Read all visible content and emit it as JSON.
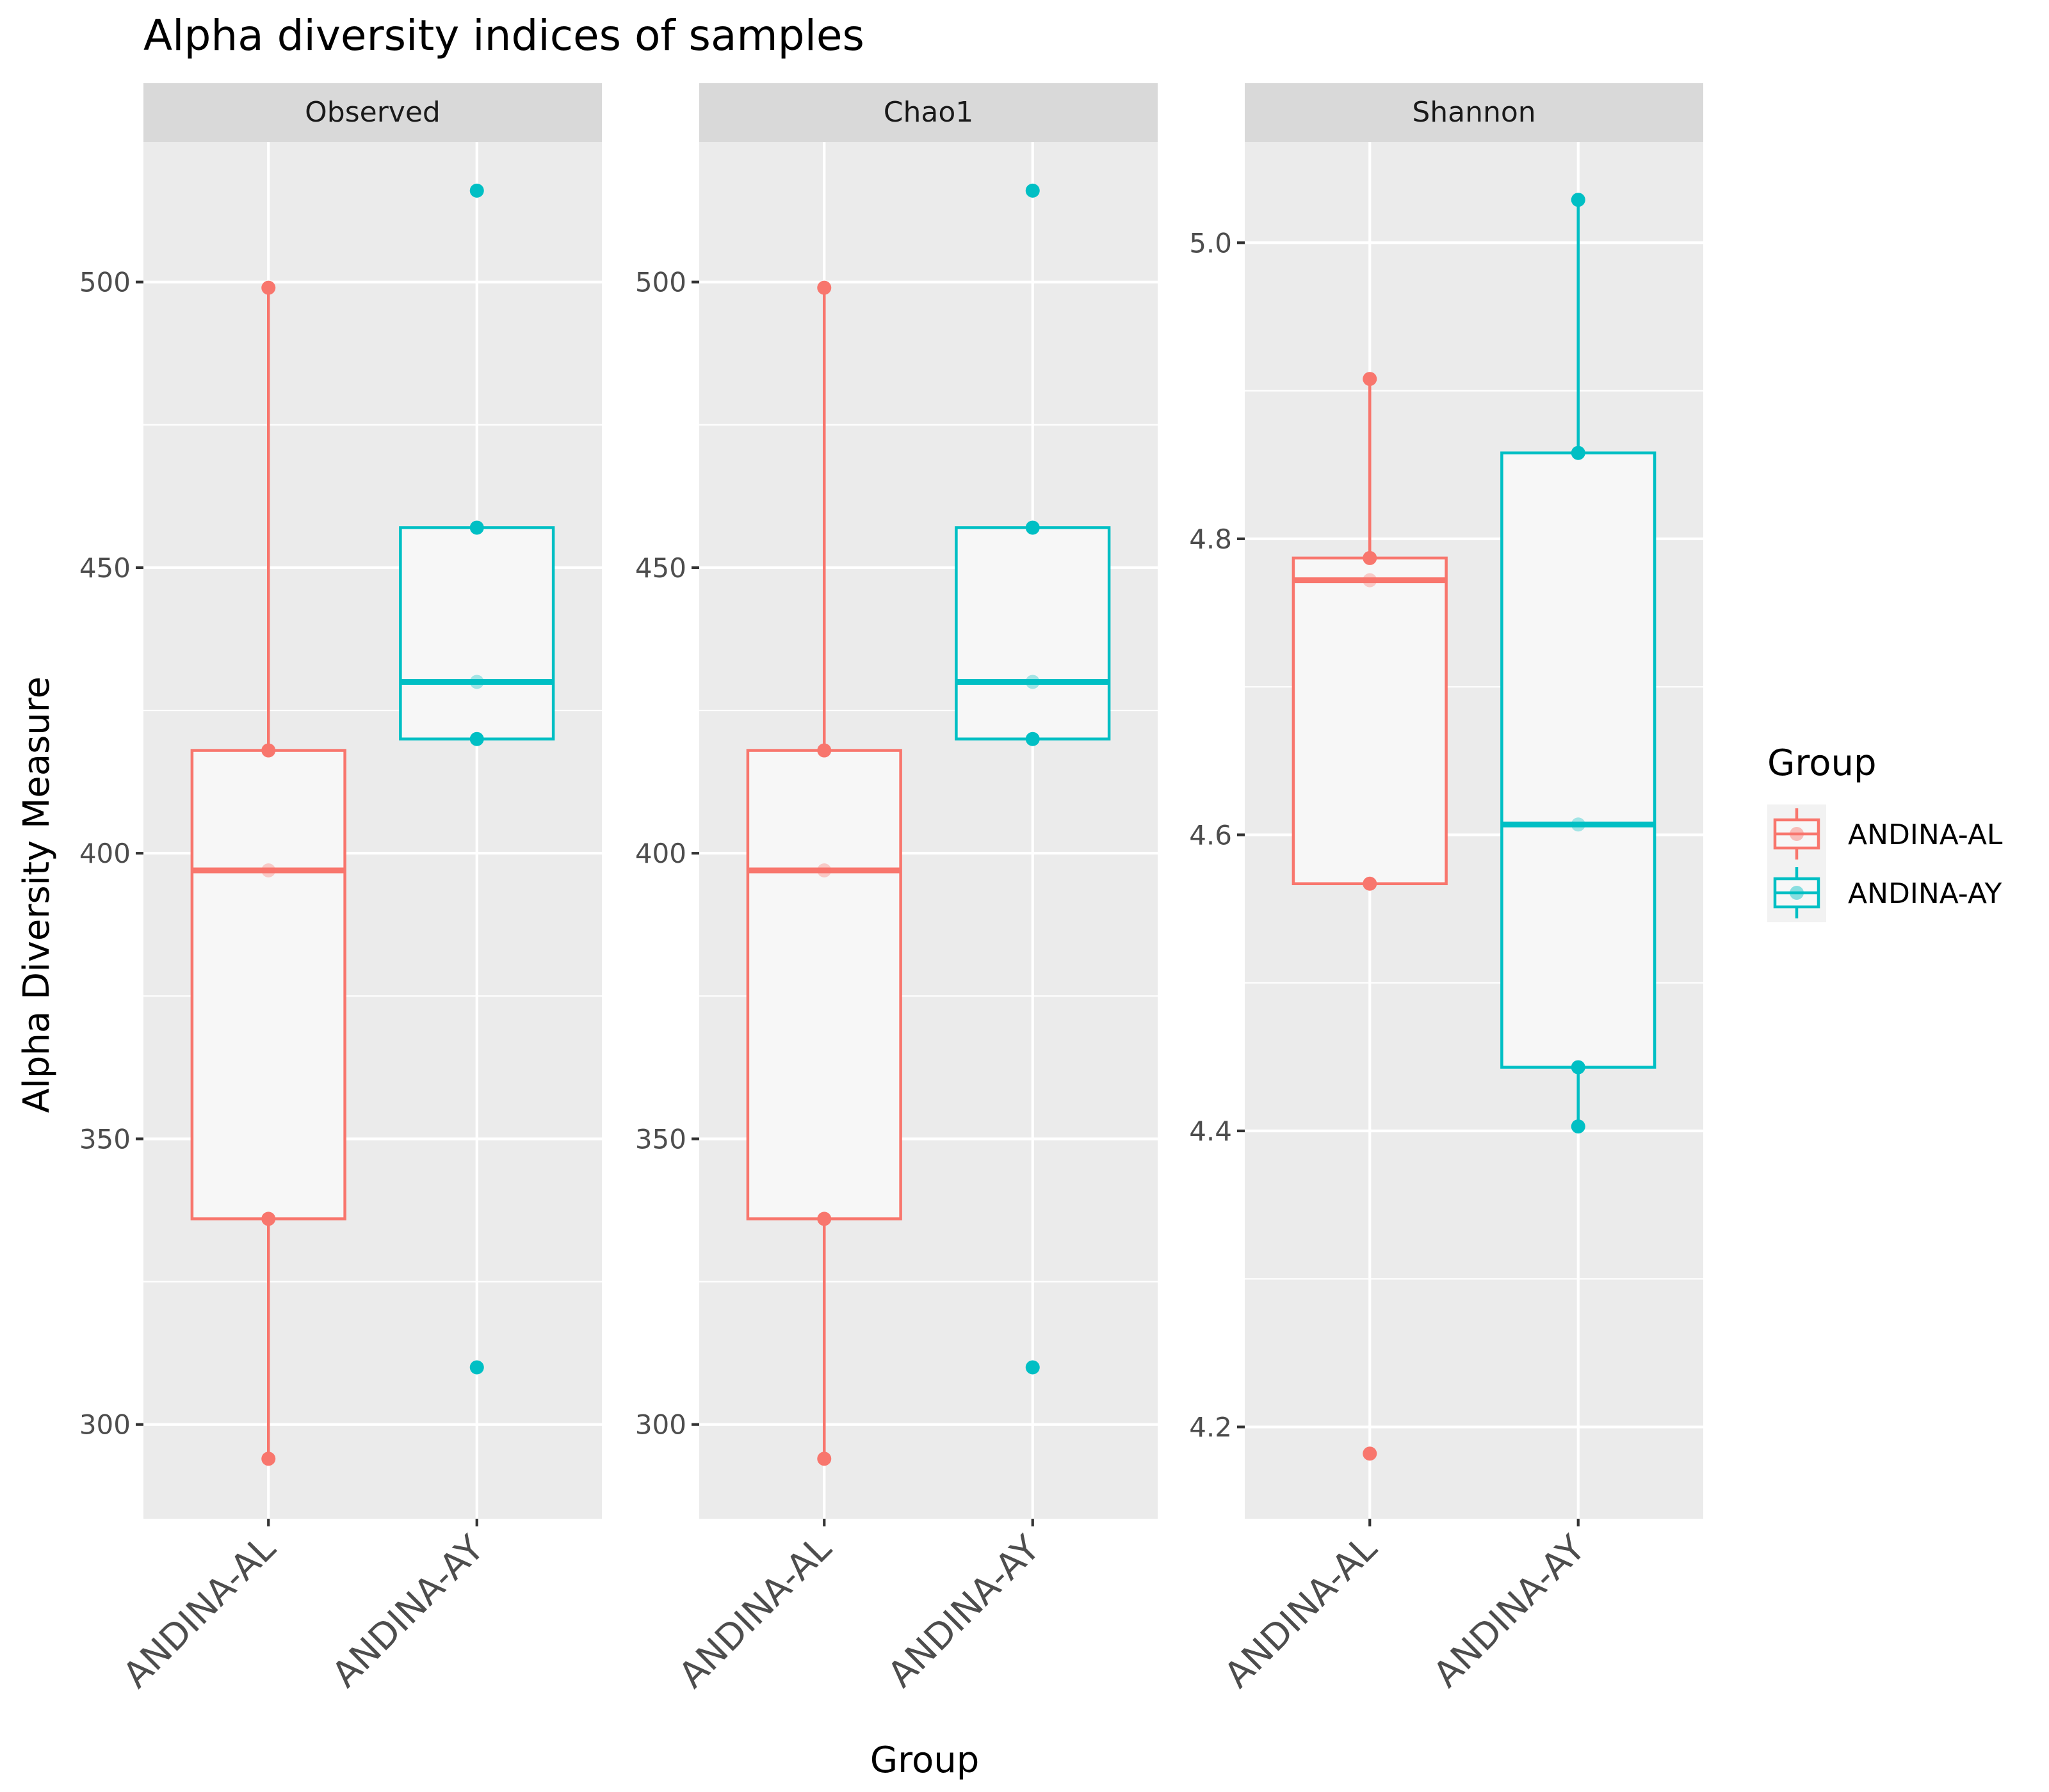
{
  "chart_data": {
    "type": "box",
    "title": "Alpha diversity indices of samples",
    "xlabel": "Group",
    "ylabel": "Alpha Diversity Measure",
    "categories": [
      "ANDINA-AL",
      "ANDINA-AY"
    ],
    "legend": {
      "title": "Group",
      "position": "right",
      "entries": [
        {
          "label": "ANDINA-AL",
          "color": "#F8766D"
        },
        {
          "label": "ANDINA-AY",
          "color": "#00BFC4"
        }
      ]
    },
    "facets": [
      {
        "name": "Observed",
        "ylim": [
          283.5,
          524.5
        ],
        "yticks": [
          300,
          350,
          400,
          450,
          500
        ],
        "ytick_labels": [
          "300",
          "350",
          "400",
          "450",
          "500"
        ],
        "groups": [
          {
            "name": "ANDINA-AL",
            "whisker_low": 294,
            "q1": 336,
            "median": 397,
            "q3": 418,
            "whisker_high": 499,
            "points": [
              294,
              336,
              397,
              418,
              499
            ]
          },
          {
            "name": "ANDINA-AY",
            "whisker_low": 420,
            "q1": 420,
            "median": 430,
            "q3": 457,
            "whisker_high": 457,
            "points": [
              310,
              420,
              430,
              457,
              516
            ],
            "outliers": [
              310,
              516
            ]
          }
        ]
      },
      {
        "name": "Chao1",
        "ylim": [
          283.5,
          524.5
        ],
        "yticks": [
          300,
          350,
          400,
          450,
          500
        ],
        "ytick_labels": [
          "300",
          "350",
          "400",
          "450",
          "500"
        ],
        "groups": [
          {
            "name": "ANDINA-AL",
            "whisker_low": 294,
            "q1": 336,
            "median": 397,
            "q3": 418,
            "whisker_high": 499,
            "points": [
              294,
              336,
              397,
              418,
              499
            ]
          },
          {
            "name": "ANDINA-AY",
            "whisker_low": 420,
            "q1": 420,
            "median": 430,
            "q3": 457,
            "whisker_high": 457,
            "points": [
              310,
              420,
              430,
              457,
              516
            ],
            "outliers": [
              310,
              516
            ]
          }
        ]
      },
      {
        "name": "Shannon",
        "ylim": [
          4.138,
          5.068
        ],
        "yticks": [
          4.2,
          4.4,
          4.6,
          4.8,
          5.0
        ],
        "ytick_labels": [
          "4.2",
          "4.4",
          "4.6",
          "4.8",
          "5.0"
        ],
        "groups": [
          {
            "name": "ANDINA-AL",
            "whisker_low": 4.567,
            "q1": 4.567,
            "median": 4.772,
            "q3": 4.787,
            "whisker_high": 4.908,
            "points": [
              4.182,
              4.567,
              4.772,
              4.787,
              4.908
            ],
            "outliers": [
              4.182
            ]
          },
          {
            "name": "ANDINA-AY",
            "whisker_low": 4.403,
            "q1": 4.443,
            "median": 4.607,
            "q3": 4.858,
            "whisker_high": 5.029,
            "points": [
              4.403,
              4.443,
              4.607,
              4.858,
              5.029
            ]
          }
        ]
      }
    ]
  }
}
